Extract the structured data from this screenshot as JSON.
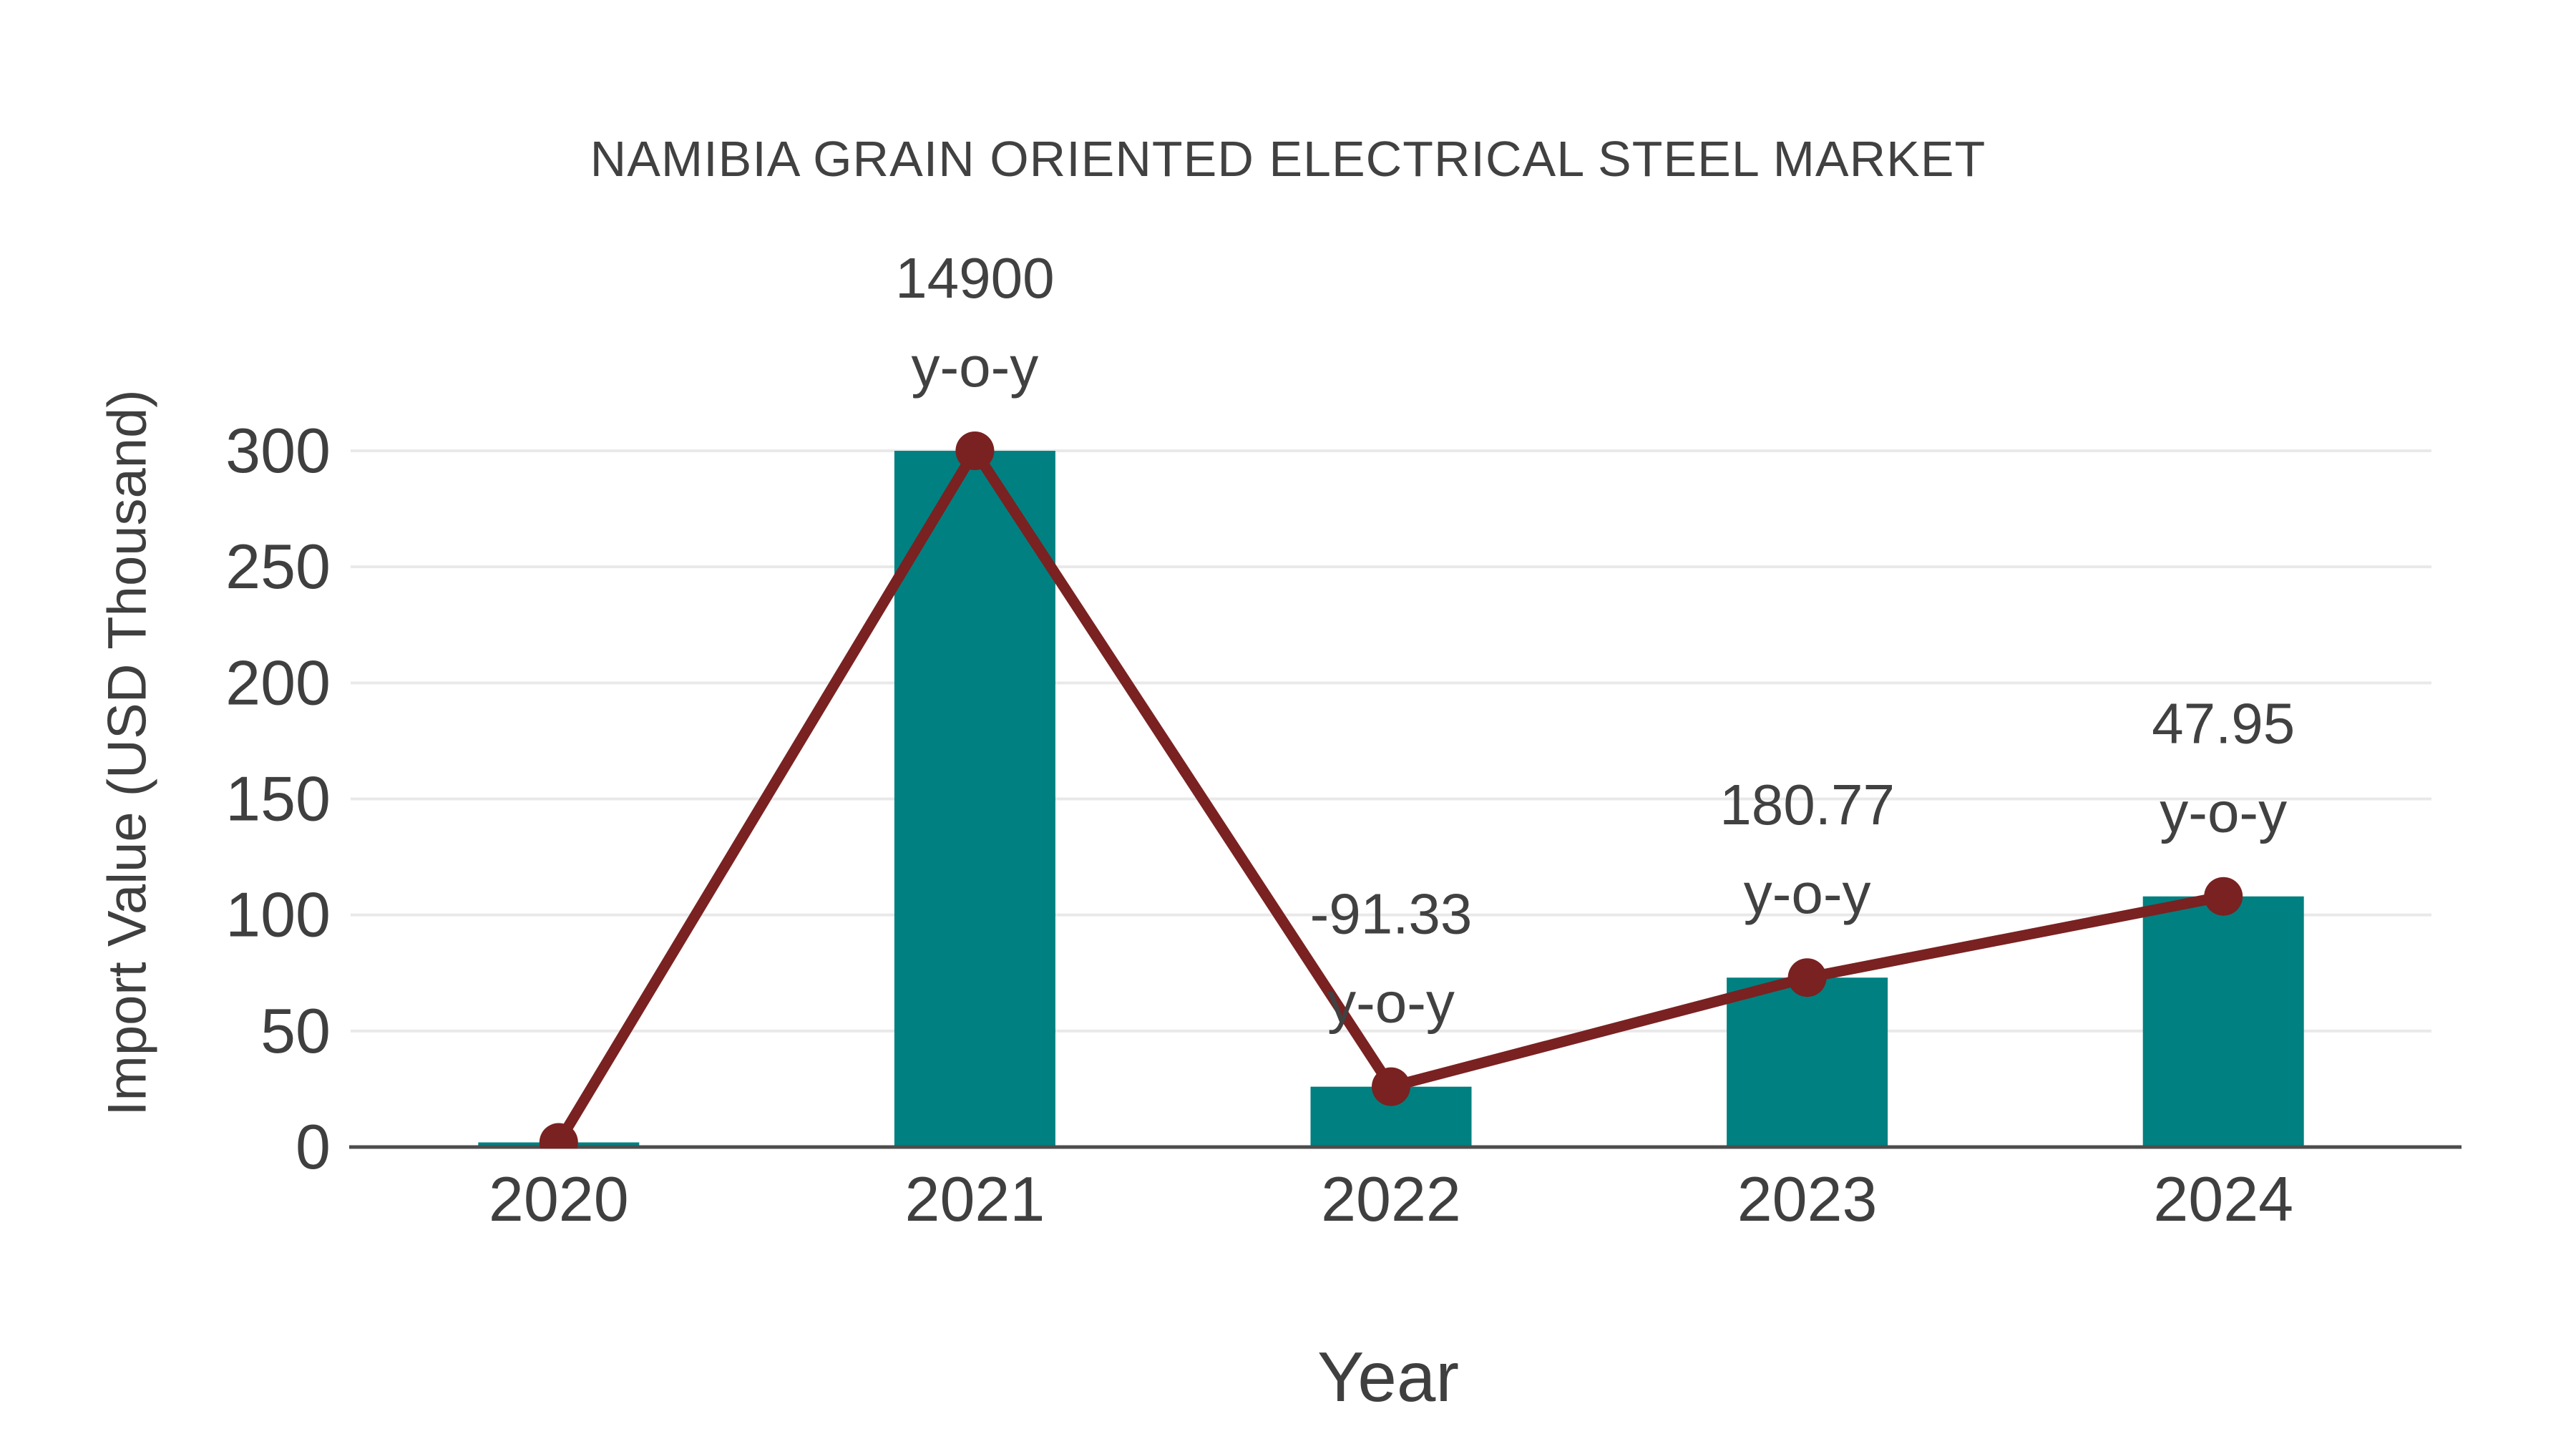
{
  "chart_data": {
    "type": "bar",
    "title": "NAMIBIA GRAIN ORIENTED ELECTRICAL STEEL MARKET",
    "xlabel": "Year",
    "ylabel": "Import Value (USD Thousand)",
    "categories": [
      "2020",
      "2021",
      "2022",
      "2023",
      "2024"
    ],
    "series": [
      {
        "name": "Import Value bars",
        "type": "bar",
        "values": [
          2,
          300,
          26,
          73,
          108
        ]
      },
      {
        "name": "Import Value trend line",
        "type": "line",
        "values": [
          2,
          300,
          26,
          73,
          108
        ]
      }
    ],
    "annotations": [
      {
        "category": "2021",
        "line1": "14900",
        "line2": "y-o-y"
      },
      {
        "category": "2022",
        "line1": "-91.33",
        "line2": "y-o-y"
      },
      {
        "category": "2023",
        "line1": "180.77",
        "line2": "y-o-y"
      },
      {
        "category": "2024",
        "line1": "47.95",
        "line2": "y-o-y"
      }
    ],
    "yticks": [
      0,
      50,
      100,
      150,
      200,
      250,
      300
    ],
    "ylim": [
      0,
      300
    ],
    "grid": true,
    "legend": false,
    "colors": {
      "bar": "#008080",
      "line": "#7a2121",
      "marker": "#7a2121",
      "grid": "#e9e9e9",
      "axis": "#4d4d4d",
      "tick_text": "#3f3f3f",
      "annotation_text": "#414141",
      "title_text": "#414141",
      "background": "#ffffff"
    }
  }
}
